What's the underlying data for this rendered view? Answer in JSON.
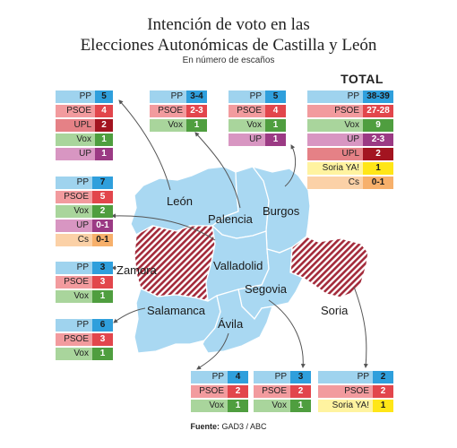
{
  "title_line1": "Intención de voto en las",
  "title_line2": "Elecciones Autonómicas de Castilla y León",
  "subtitle": "En número de escaños",
  "total_title": "TOTAL",
  "source_label": "Fuente:",
  "source_value": "GAD3 / ABC",
  "colors": {
    "PP": {
      "label_bg": "#9fd3ee",
      "value_bg": "#2f9fdc",
      "value_fg": "#1a1a1a"
    },
    "PSOE": {
      "label_bg": "#f29b9e",
      "value_bg": "#e2464c",
      "value_fg": "#ffffff"
    },
    "Vox": {
      "label_bg": "#a9d59c",
      "value_bg": "#4f9e3f",
      "value_fg": "#ffffff"
    },
    "UPL": {
      "label_bg": "#e58186",
      "value_bg": "#a31420",
      "value_fg": "#ffffff"
    },
    "UP": {
      "label_bg": "#d896c2",
      "value_bg": "#9b3a84",
      "value_fg": "#ffffff"
    },
    "Cs": {
      "label_bg": "#fbd1a7",
      "value_bg": "#f7b06b",
      "value_fg": "#1a1a1a"
    },
    "Soria YA!": {
      "label_bg": "#fff3a0",
      "value_bg": "#ffe617",
      "value_fg": "#1a1a1a"
    },
    "map_fill": "#a9d8f2",
    "map_stroke": "#ffffff",
    "hatch_color": "#a32a3a"
  },
  "provinces": [
    {
      "name": "León"
    },
    {
      "name": "Palencia"
    },
    {
      "name": "Burgos"
    },
    {
      "name": "Zamora"
    },
    {
      "name": "Valladolid"
    },
    {
      "name": "Soria"
    },
    {
      "name": "Segovia"
    },
    {
      "name": "Salamanca"
    },
    {
      "name": "Ávila"
    }
  ],
  "tables": [
    {
      "id": "leon",
      "rows": [
        [
          "PP",
          "5"
        ],
        [
          "PSOE",
          "4"
        ],
        [
          "UPL",
          "2"
        ],
        [
          "Vox",
          "1"
        ],
        [
          "UP",
          "1"
        ]
      ]
    },
    {
      "id": "palencia",
      "rows": [
        [
          "PP",
          "3-4"
        ],
        [
          "PSOE",
          "2-3"
        ],
        [
          "Vox",
          "1"
        ]
      ]
    },
    {
      "id": "burgos",
      "rows": [
        [
          "PP",
          "5"
        ],
        [
          "PSOE",
          "4"
        ],
        [
          "Vox",
          "1"
        ],
        [
          "UP",
          "1"
        ]
      ]
    },
    {
      "id": "total",
      "rows": [
        [
          "PP",
          "38-39"
        ],
        [
          "PSOE",
          "27-28"
        ],
        [
          "Vox",
          "9"
        ],
        [
          "UP",
          "2-3"
        ],
        [
          "UPL",
          "2"
        ],
        [
          "Soria YA!",
          "1"
        ],
        [
          "Cs",
          "0-1"
        ]
      ]
    },
    {
      "id": "valladolid",
      "rows": [
        [
          "PP",
          "7"
        ],
        [
          "PSOE",
          "5"
        ],
        [
          "Vox",
          "2"
        ],
        [
          "UP",
          "0-1"
        ],
        [
          "Cs",
          "0-1"
        ]
      ]
    },
    {
      "id": "zamora",
      "rows": [
        [
          "PP",
          "3"
        ],
        [
          "PSOE",
          "3"
        ],
        [
          "Vox",
          "1"
        ]
      ]
    },
    {
      "id": "salamanca",
      "rows": [
        [
          "PP",
          "6"
        ],
        [
          "PSOE",
          "3"
        ],
        [
          "Vox",
          "1"
        ]
      ]
    },
    {
      "id": "avila",
      "rows": [
        [
          "PP",
          "4"
        ],
        [
          "PSOE",
          "2"
        ],
        [
          "Vox",
          "1"
        ]
      ]
    },
    {
      "id": "segovia",
      "rows": [
        [
          "PP",
          "3"
        ],
        [
          "PSOE",
          "2"
        ],
        [
          "Vox",
          "1"
        ]
      ]
    },
    {
      "id": "soria",
      "rows": [
        [
          "PP",
          "2"
        ],
        [
          "PSOE",
          "2"
        ],
        [
          "Soria YA!",
          "1"
        ]
      ]
    }
  ]
}
